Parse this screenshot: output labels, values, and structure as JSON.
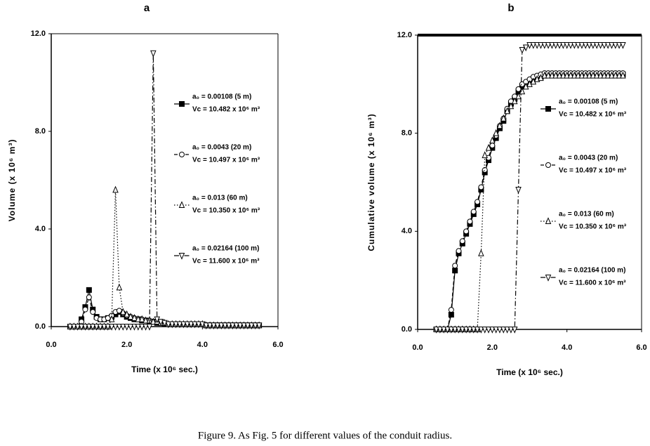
{
  "chart_data": [
    {
      "type": "line",
      "title": "a",
      "x_label": "Time (x 10⁶ sec.)",
      "y_label": "Volume (x 10⁶ m³)",
      "xlim": [
        0,
        6
      ],
      "ylim": [
        0,
        12
      ],
      "xticks": [
        {
          "value": 0,
          "label": "0.0"
        },
        {
          "value": 2,
          "label": "2.0"
        },
        {
          "value": 4,
          "label": "4.0"
        },
        {
          "value": 6,
          "label": "6.0"
        }
      ],
      "yticks": [
        {
          "value": 0,
          "label": "0.0"
        },
        {
          "value": 4,
          "label": "4.0"
        },
        {
          "value": 8,
          "label": "8.0"
        },
        {
          "value": 12,
          "label": "12.0"
        }
      ],
      "x": [
        0.5,
        0.6,
        0.7,
        0.8,
        0.9,
        1.0,
        1.1,
        1.2,
        1.3,
        1.4,
        1.5,
        1.6,
        1.7,
        1.8,
        1.9,
        2.0,
        2.1,
        2.2,
        2.3,
        2.4,
        2.5,
        2.6,
        2.7,
        2.8,
        2.9,
        3.0,
        3.1,
        3.2,
        3.3,
        3.4,
        3.5,
        3.6,
        3.7,
        3.8,
        3.9,
        4.0,
        4.1,
        4.2,
        4.3,
        4.4,
        4.5,
        4.6,
        4.7,
        4.8,
        4.9,
        5.0,
        5.1,
        5.2,
        5.3,
        5.4,
        5.5
      ],
      "series": [
        {
          "name": "a₀ = 0.00108 (5 m)",
          "volume_label": "Vc = 10.482 x 10⁶ m³",
          "color": "#000000",
          "marker": "square",
          "dash": "solid",
          "values": [
            0,
            0,
            0,
            0.3,
            0.8,
            1.5,
            0.7,
            0.4,
            0.3,
            0.3,
            0.35,
            0.4,
            0.5,
            0.6,
            0.5,
            0.4,
            0.35,
            0.3,
            0.3,
            0.25,
            0.25,
            0.2,
            0.2,
            0.15,
            0.15,
            0.1,
            0.1,
            0.1,
            0.1,
            0.1,
            0.1,
            0.1,
            0.1,
            0.1,
            0.1,
            0.1,
            0.05,
            0.05,
            0.05,
            0.05,
            0.05,
            0.05,
            0.05,
            0.05,
            0.05,
            0.05,
            0.05,
            0.05,
            0.05,
            0.05,
            0.05
          ]
        },
        {
          "name": "a₀ = 0.0043 (20 m)",
          "volume_label": "Vc = 10.497 x 10⁶ m³",
          "color": "#000000",
          "marker": "circle",
          "dash": "dashed",
          "values": [
            0,
            0,
            0,
            0.2,
            0.7,
            1.2,
            0.6,
            0.35,
            0.3,
            0.3,
            0.35,
            0.45,
            0.6,
            0.65,
            0.55,
            0.45,
            0.4,
            0.35,
            0.3,
            0.3,
            0.25,
            0.25,
            0.2,
            0.2,
            0.15,
            0.15,
            0.1,
            0.1,
            0.1,
            0.1,
            0.1,
            0.1,
            0.1,
            0.1,
            0.1,
            0.1,
            0.05,
            0.05,
            0.05,
            0.05,
            0.05,
            0.05,
            0.05,
            0.05,
            0.05,
            0.05,
            0.05,
            0.05,
            0.05,
            0.05,
            0.05
          ]
        },
        {
          "name": "a₀ = 0.013 (60 m)",
          "volume_label": "Vc = 10.350 x 10⁶ m³",
          "color": "#000000",
          "marker": "triangle-up",
          "dash": "dotted",
          "values": [
            0,
            0,
            0,
            0,
            0,
            0,
            0,
            0,
            0,
            0,
            0,
            0.3,
            5.6,
            1.6,
            0.6,
            0.5,
            0.4,
            0.35,
            0.3,
            0.3,
            0.25,
            0.25,
            0.2,
            0.2,
            0.15,
            0.15,
            0.1,
            0.1,
            0.1,
            0.1,
            0.1,
            0.1,
            0.1,
            0.1,
            0.1,
            0.1,
            0.05,
            0.05,
            0.05,
            0.05,
            0.05,
            0.05,
            0.05,
            0.05,
            0.05,
            0.05,
            0.05,
            0.05,
            0.05,
            0.05,
            0.05
          ]
        },
        {
          "name": "a₀ = 0.02164 (100 m)",
          "volume_label": "Vc = 11.600 x 10⁶ m³",
          "color": "#000000",
          "marker": "triangle-down",
          "dash": "dashdot",
          "values": [
            0,
            0,
            0,
            0,
            0,
            0,
            0,
            0,
            0,
            0,
            0,
            0,
            0,
            0,
            0,
            0,
            0,
            0,
            0,
            0,
            0,
            0,
            11.2,
            0.3,
            0.2,
            0.15,
            0.1,
            0.1,
            0.1,
            0.1,
            0.1,
            0.1,
            0.1,
            0.1,
            0.1,
            0.1,
            0.05,
            0.05,
            0.05,
            0.05,
            0.05,
            0.05,
            0.05,
            0.05,
            0.05,
            0.05,
            0.05,
            0.05,
            0.05,
            0.05,
            0.05
          ]
        }
      ]
    },
    {
      "type": "line",
      "title": "b",
      "x_label": "Time (x 10⁶ sec.)",
      "y_label": "Cumulative volume (x 10⁶ m³)",
      "xlim": [
        0,
        6
      ],
      "ylim": [
        0,
        12
      ],
      "xticks": [
        {
          "value": 0,
          "label": "0.0"
        },
        {
          "value": 2,
          "label": "2.0"
        },
        {
          "value": 4,
          "label": "4.0"
        },
        {
          "value": 6,
          "label": "6.0"
        }
      ],
      "yticks": [
        {
          "value": 0,
          "label": "0.0"
        },
        {
          "value": 4,
          "label": "4.0"
        },
        {
          "value": 8,
          "label": "8.0"
        },
        {
          "value": 12,
          "label": "12.0"
        }
      ],
      "x": [
        0.5,
        0.6,
        0.7,
        0.8,
        0.9,
        1.0,
        1.1,
        1.2,
        1.3,
        1.4,
        1.5,
        1.6,
        1.7,
        1.8,
        1.9,
        2.0,
        2.1,
        2.2,
        2.3,
        2.4,
        2.5,
        2.6,
        2.7,
        2.8,
        2.9,
        3.0,
        3.1,
        3.2,
        3.3,
        3.4,
        3.5,
        3.6,
        3.7,
        3.8,
        3.9,
        4.0,
        4.1,
        4.2,
        4.3,
        4.4,
        4.5,
        4.6,
        4.7,
        4.8,
        4.9,
        5.0,
        5.1,
        5.2,
        5.3,
        5.4,
        5.5
      ],
      "series": [
        {
          "name": "a₀ = 0.00108 (5 m)",
          "volume_label": "Vc = 10.482 x 10⁶ m³",
          "color": "#000000",
          "marker": "square",
          "dash": "solid",
          "values": [
            0,
            0,
            0,
            0,
            0.6,
            2.4,
            3.1,
            3.5,
            3.9,
            4.3,
            4.7,
            5.1,
            5.7,
            6.4,
            6.9,
            7.4,
            7.8,
            8.2,
            8.5,
            8.9,
            9.2,
            9.4,
            9.7,
            9.9,
            10.0,
            10.1,
            10.2,
            10.25,
            10.3,
            10.35,
            10.4,
            10.4,
            10.4,
            10.4,
            10.4,
            10.4,
            10.4,
            10.4,
            10.4,
            10.4,
            10.4,
            10.4,
            10.4,
            10.4,
            10.4,
            10.4,
            10.4,
            10.4,
            10.4,
            10.4,
            10.4
          ]
        },
        {
          "name": "a₀ = 0.0043 (20 m)",
          "volume_label": "Vc = 10.497 x 10⁶ m³",
          "color": "#000000",
          "marker": "circle",
          "dash": "dashed",
          "values": [
            0,
            0,
            0,
            0,
            0.8,
            2.6,
            3.2,
            3.6,
            4.0,
            4.4,
            4.8,
            5.2,
            5.8,
            6.5,
            7.0,
            7.5,
            7.9,
            8.3,
            8.6,
            9.0,
            9.3,
            9.5,
            9.8,
            10.0,
            10.1,
            10.2,
            10.3,
            10.35,
            10.4,
            10.45,
            10.45,
            10.45,
            10.45,
            10.45,
            10.45,
            10.45,
            10.45,
            10.45,
            10.45,
            10.45,
            10.45,
            10.45,
            10.45,
            10.45,
            10.45,
            10.45,
            10.45,
            10.45,
            10.45,
            10.45,
            10.45
          ]
        },
        {
          "name": "a₀ = 0.013 (60 m)",
          "volume_label": "Vc = 10.350 x 10⁶ m³",
          "color": "#000000",
          "marker": "triangle-up",
          "dash": "dotted",
          "values": [
            0,
            0,
            0,
            0,
            0,
            0,
            0,
            0,
            0,
            0,
            0,
            0,
            3.1,
            7.1,
            7.4,
            7.7,
            8.0,
            8.3,
            8.6,
            8.9,
            9.1,
            9.3,
            9.5,
            9.7,
            9.9,
            10.0,
            10.1,
            10.2,
            10.25,
            10.35,
            10.35,
            10.35,
            10.35,
            10.35,
            10.35,
            10.35,
            10.35,
            10.35,
            10.35,
            10.35,
            10.35,
            10.35,
            10.35,
            10.35,
            10.35,
            10.35,
            10.35,
            10.35,
            10.35,
            10.35,
            10.35
          ]
        },
        {
          "name": "a₀ = 0.02164 (100 m)",
          "volume_label": "Vc = 11.600 x 10⁶ m³",
          "color": "#000000",
          "marker": "triangle-down",
          "dash": "dashdot",
          "values": [
            0,
            0,
            0,
            0,
            0,
            0,
            0,
            0,
            0,
            0,
            0,
            0,
            0,
            0,
            0,
            0,
            0,
            0,
            0,
            0,
            0,
            0,
            5.7,
            11.4,
            11.5,
            11.6,
            11.6,
            11.6,
            11.6,
            11.6,
            11.6,
            11.6,
            11.6,
            11.6,
            11.6,
            11.6,
            11.6,
            11.6,
            11.6,
            11.6,
            11.6,
            11.6,
            11.6,
            11.6,
            11.6,
            11.6,
            11.6,
            11.6,
            11.6,
            11.6,
            11.6
          ]
        }
      ]
    }
  ],
  "caption": "Figure 9. As Fig. 5 for different values of the conduit radius."
}
